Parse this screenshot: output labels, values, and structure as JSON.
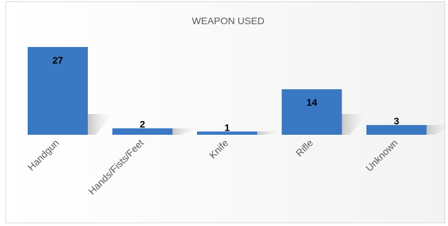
{
  "chart_data": {
    "type": "bar",
    "title": "WEAPON USED",
    "categories": [
      "Handgun",
      "Hands/Fists/Feet",
      "Knife",
      "Rifle",
      "Unknown"
    ],
    "values": [
      27,
      2,
      1,
      14,
      3
    ],
    "ylim": [
      0,
      27
    ],
    "grid": false,
    "legend": "none",
    "bar_color": "#3a78c3",
    "xlabel": "",
    "ylabel": ""
  }
}
